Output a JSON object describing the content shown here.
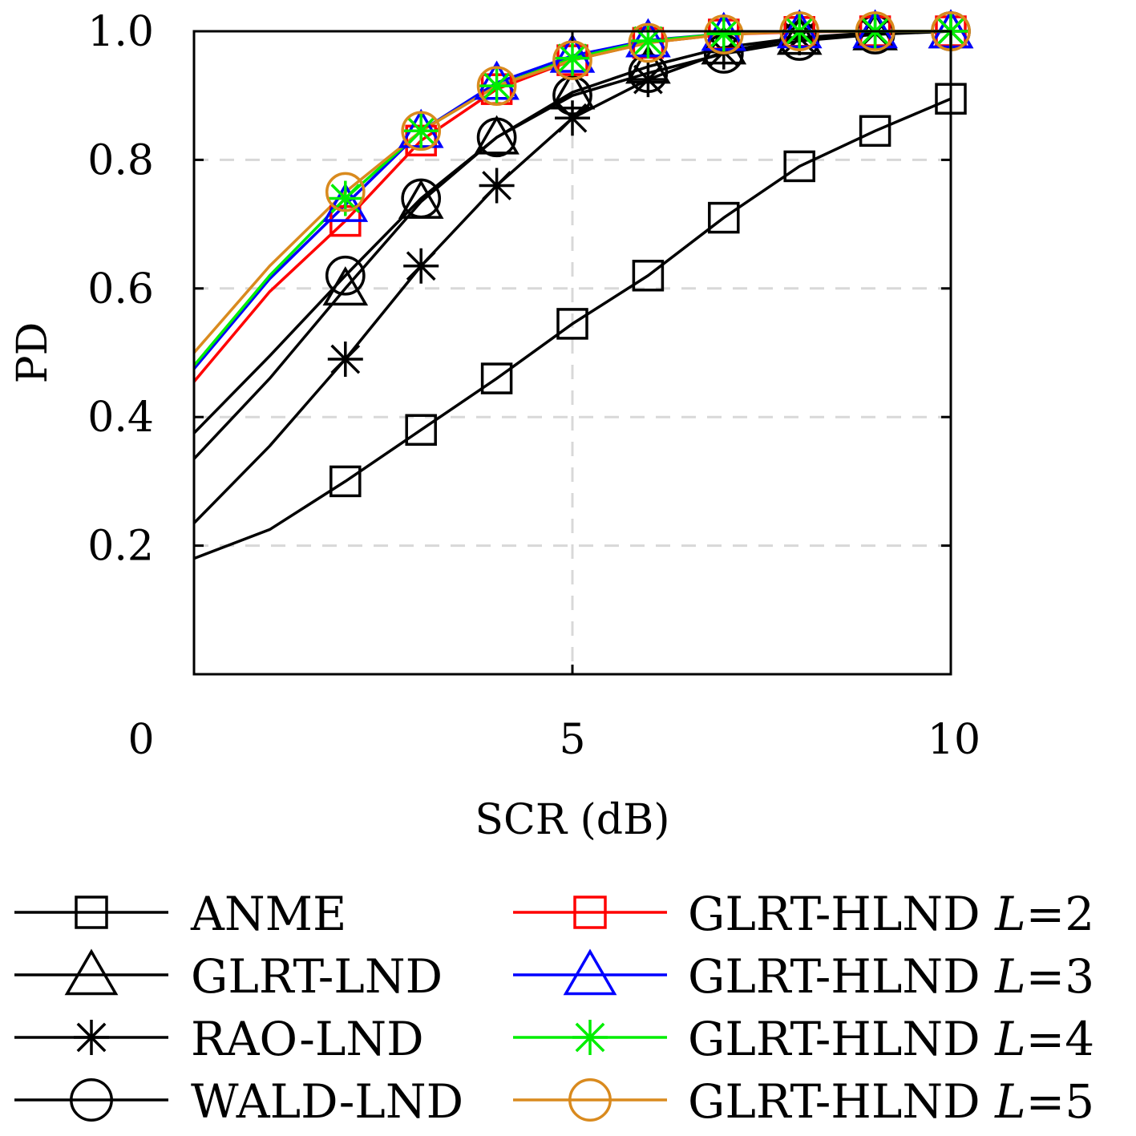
{
  "chart_data": {
    "type": "line",
    "xlabel": "SCR (dB)",
    "ylabel": "PD",
    "xlim": [
      0,
      10
    ],
    "ylim": [
      0,
      1.0
    ],
    "x_tick_values": [
      0,
      5,
      10
    ],
    "x_tick_labels": [
      "0",
      "5",
      "10"
    ],
    "y_tick_values": [
      0.2,
      0.4,
      0.6,
      0.8,
      1.0
    ],
    "y_tick_labels": [
      "0.2",
      "0.4",
      "0.6",
      "0.8",
      "1.0"
    ],
    "grid": "dashed, on",
    "legend_position": "below",
    "series": [
      {
        "name": "ANME",
        "color": "#000000",
        "marker": "square",
        "x": [
          0,
          1,
          2,
          3,
          4,
          5,
          6,
          7,
          8,
          9,
          10
        ],
        "y": [
          0.18,
          0.225,
          0.3,
          0.38,
          0.46,
          0.545,
          0.62,
          0.71,
          0.79,
          0.845,
          0.895
        ]
      },
      {
        "name": "GLRT-LND",
        "color": "#000000",
        "marker": "triangle",
        "x": [
          0,
          1,
          2,
          3,
          4,
          5,
          6,
          7,
          8,
          9,
          10
        ],
        "y": [
          0.335,
          0.46,
          0.6,
          0.735,
          0.835,
          0.905,
          0.945,
          0.975,
          0.99,
          0.997,
          1.0
        ]
      },
      {
        "name": "RAO-LND",
        "color": "#000000",
        "marker": "asterisk",
        "x": [
          0,
          1,
          2,
          3,
          4,
          5,
          6,
          7,
          8,
          9,
          10
        ],
        "y": [
          0.235,
          0.355,
          0.49,
          0.635,
          0.76,
          0.865,
          0.925,
          0.968,
          0.99,
          0.998,
          1.0
        ]
      },
      {
        "name": "WALD-LND",
        "color": "#000000",
        "marker": "circle",
        "x": [
          0,
          1,
          2,
          3,
          4,
          5,
          6,
          7,
          8,
          9,
          10
        ],
        "y": [
          0.375,
          0.495,
          0.62,
          0.74,
          0.835,
          0.9,
          0.935,
          0.965,
          0.985,
          0.995,
          1.0
        ]
      },
      {
        "name": "GLRT-HLND L=2",
        "label_main": "GLRT-HLND ",
        "label_var": "L",
        "label_tail": "=2",
        "color": "#ff0000",
        "marker": "square",
        "x": [
          0,
          1,
          2,
          3,
          4,
          5,
          6,
          7,
          8,
          9,
          10
        ],
        "y": [
          0.455,
          0.595,
          0.705,
          0.83,
          0.91,
          0.955,
          0.982,
          0.995,
          0.999,
          1.0,
          1.0
        ]
      },
      {
        "name": "GLRT-HLND L=3",
        "label_main": "GLRT-HLND ",
        "label_var": "L",
        "label_tail": "=3",
        "color": "#0000ff",
        "marker": "triangle",
        "x": [
          0,
          1,
          2,
          3,
          4,
          5,
          6,
          7,
          8,
          9,
          10
        ],
        "y": [
          0.475,
          0.615,
          0.73,
          0.845,
          0.92,
          0.962,
          0.986,
          0.996,
          1.0,
          1.0,
          1.0
        ]
      },
      {
        "name": "GLRT-HLND L=4",
        "label_main": "GLRT-HLND ",
        "label_var": "L",
        "label_tail": "=4",
        "color": "#00ee00",
        "marker": "asterisk",
        "x": [
          0,
          1,
          2,
          3,
          4,
          5,
          6,
          7,
          8,
          9,
          10
        ],
        "y": [
          0.48,
          0.62,
          0.74,
          0.845,
          0.915,
          0.958,
          0.985,
          0.996,
          1.0,
          1.0,
          1.0
        ]
      },
      {
        "name": "GLRT-HLND L=5",
        "label_main": "GLRT-HLND ",
        "label_var": "L",
        "label_tail": "=5",
        "color": "#d98a1e",
        "marker": "circle",
        "x": [
          0,
          1,
          2,
          3,
          4,
          5,
          6,
          7,
          8,
          9,
          10
        ],
        "y": [
          0.5,
          0.635,
          0.75,
          0.845,
          0.915,
          0.955,
          0.982,
          0.995,
          1.0,
          1.0,
          1.0
        ]
      }
    ]
  }
}
